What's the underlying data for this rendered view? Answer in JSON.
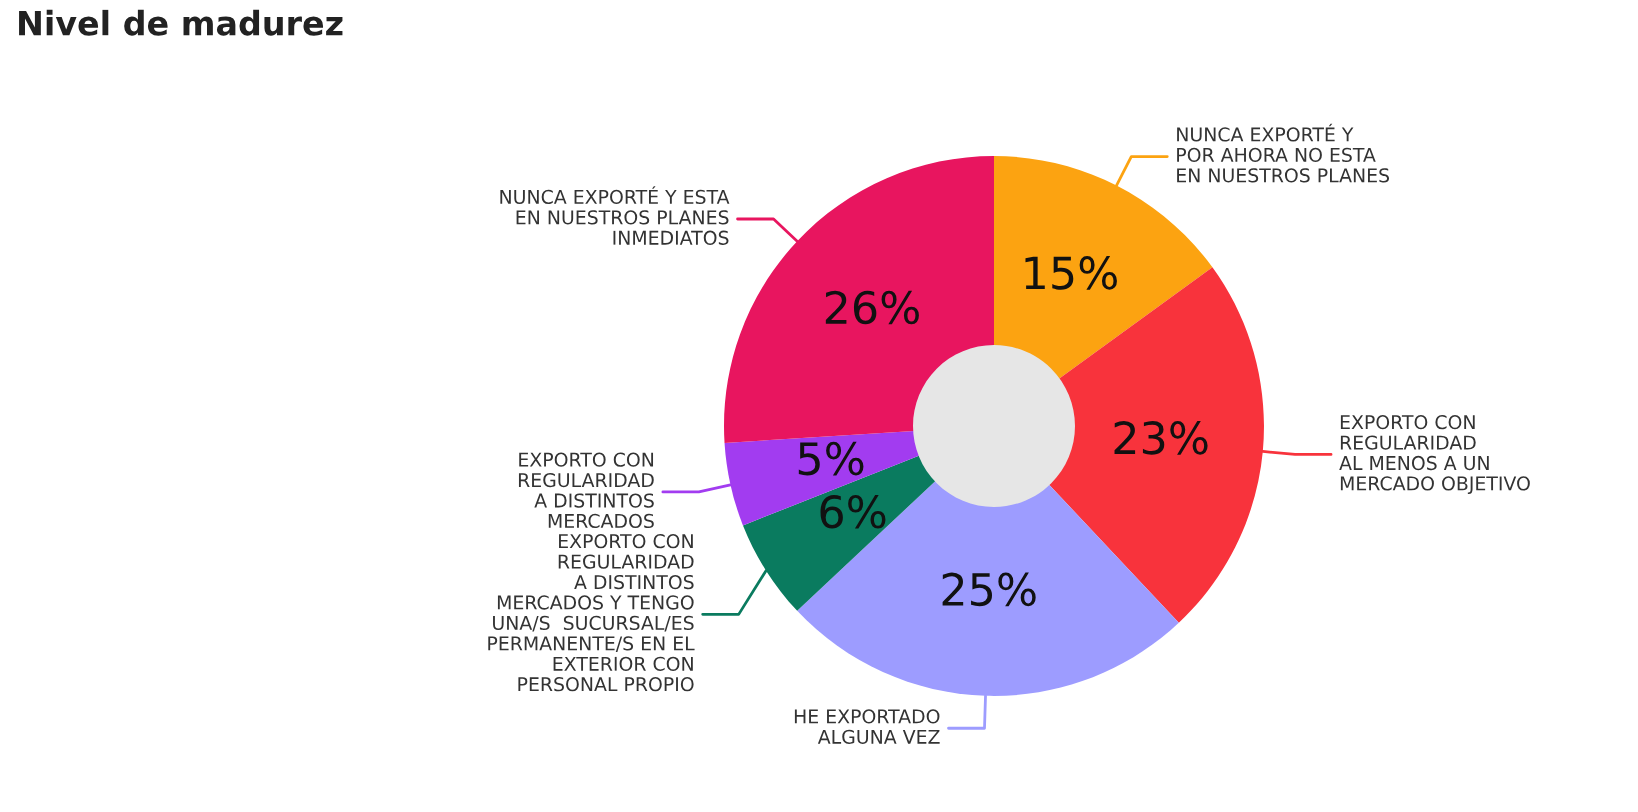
{
  "chart_data": {
    "type": "donut",
    "title": "Nivel de madurez",
    "categories": [
      "NUNCA EXPORTÉ Y\nPOR AHORA NO ESTA\nEN NUESTROS PLANES",
      "EXPORTO CON\nREGULARIDAD\nAL MENOS A UN\nMERCADO OBJETIVO",
      "HE EXPORTADO\nALGUNA VEZ",
      "EXPORTO CON\nREGULARIDAD\nA DISTINTOS\nMERCADOS Y TENGO\nUNA/S  SUCURSAL/ES\nPERMANENTE/S EN EL\nEXTERIOR CON\nPERSONAL PROPIO",
      "EXPORTO CON\nREGULARIDAD\nA DISTINTOS\nMERCADOS",
      "NUNCA EXPORTÉ Y ESTA\nEN NUESTROS PLANES\nINMEDIATOS"
    ],
    "values": [
      15,
      23,
      25,
      6,
      5,
      26
    ],
    "value_labels": [
      "15%",
      "23%",
      "25%",
      "6%",
      "5%",
      "26%"
    ],
    "colors": [
      "#fca311",
      "#f8333c",
      "#9d9cff",
      "#0a7b5f",
      "#a23cf0",
      "#e8155f"
    ]
  }
}
